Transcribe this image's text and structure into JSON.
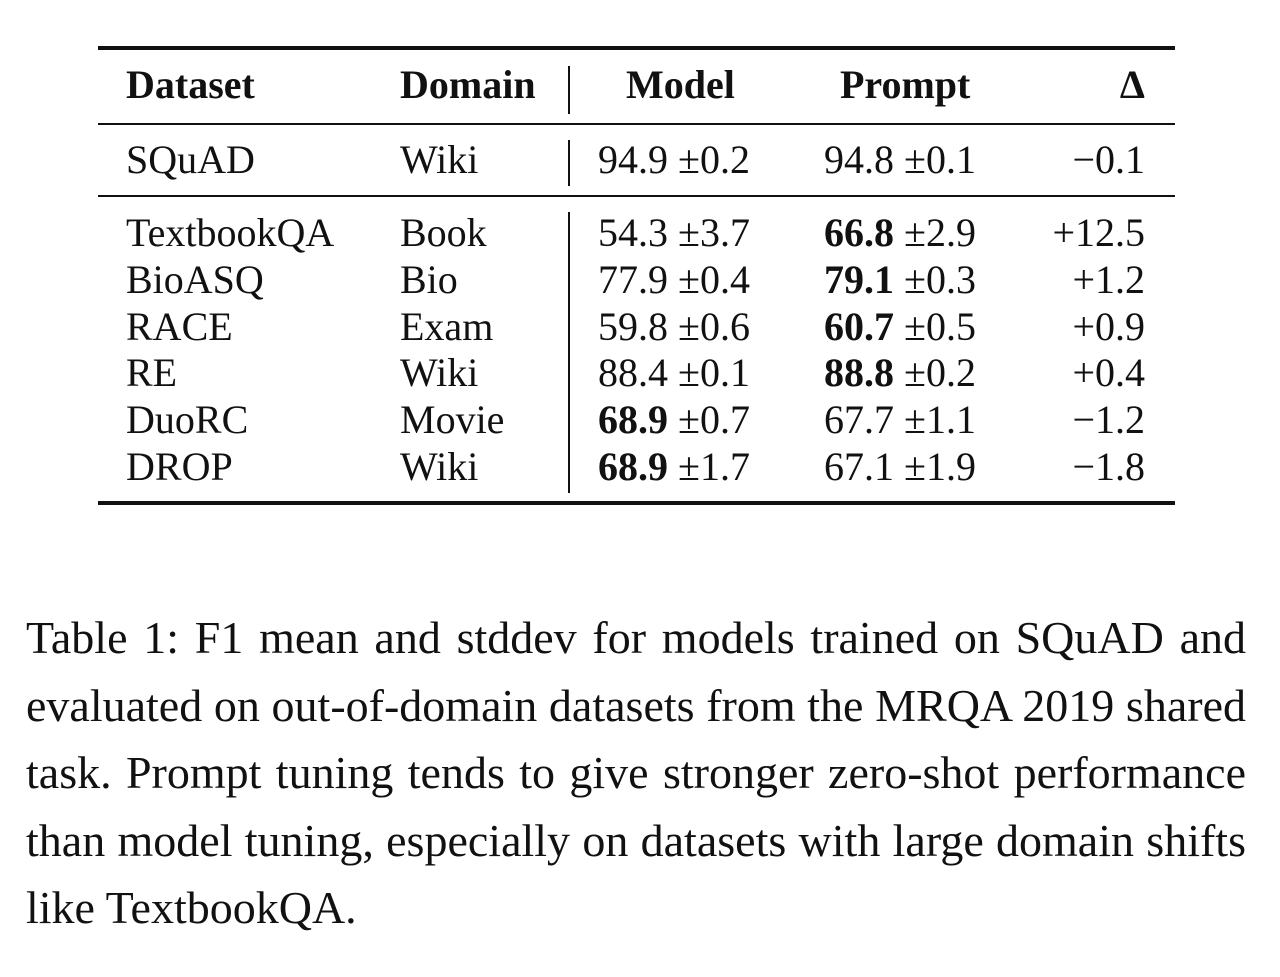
{
  "table": {
    "headers": {
      "dataset": "Dataset",
      "domain": "Domain",
      "model": "Model",
      "prompt": "Prompt",
      "delta": "Δ"
    },
    "squad_row": {
      "dataset": "SQuAD",
      "domain": "Wiki",
      "model_mean": "94.9",
      "model_sd": "±0.2",
      "prompt_mean": "94.8",
      "prompt_sd": "±0.1",
      "delta": "−0.1",
      "model_bold": false,
      "prompt_bold": false
    },
    "rows": [
      {
        "dataset": "TextbookQA",
        "domain": "Book",
        "model_mean": "54.3",
        "model_sd": "±3.7",
        "prompt_mean": "66.8",
        "prompt_sd": "±2.9",
        "delta": "+12.5",
        "model_bold": false,
        "prompt_bold": true
      },
      {
        "dataset": "BioASQ",
        "domain": "Bio",
        "model_mean": "77.9",
        "model_sd": "±0.4",
        "prompt_mean": "79.1",
        "prompt_sd": "±0.3",
        "delta": "+1.2",
        "model_bold": false,
        "prompt_bold": true
      },
      {
        "dataset": "RACE",
        "domain": "Exam",
        "model_mean": "59.8",
        "model_sd": "±0.6",
        "prompt_mean": "60.7",
        "prompt_sd": "±0.5",
        "delta": "+0.9",
        "model_bold": false,
        "prompt_bold": true
      },
      {
        "dataset": "RE",
        "domain": "Wiki",
        "model_mean": "88.4",
        "model_sd": "±0.1",
        "prompt_mean": "88.8",
        "prompt_sd": "±0.2",
        "delta": "+0.4",
        "model_bold": false,
        "prompt_bold": true
      },
      {
        "dataset": "DuoRC",
        "domain": "Movie",
        "model_mean": "68.9",
        "model_sd": "±0.7",
        "prompt_mean": "67.7",
        "prompt_sd": "±1.1",
        "delta": "−1.2",
        "model_bold": true,
        "prompt_bold": false
      },
      {
        "dataset": "DROP",
        "domain": "Wiki",
        "model_mean": "68.9",
        "model_sd": "±1.7",
        "prompt_mean": "67.1",
        "prompt_sd": "±1.9",
        "delta": "−1.8",
        "model_bold": true,
        "prompt_bold": false
      }
    ]
  },
  "caption": {
    "text": "Table 1: F1 mean and stddev for models trained on SQuAD and evaluated on out-of-domain datasets from the MRQA 2019 shared task. Prompt tuning tends to give stronger zero-shot performance than model tuning, especially on datasets with large domain shifts like TextbookQA."
  }
}
